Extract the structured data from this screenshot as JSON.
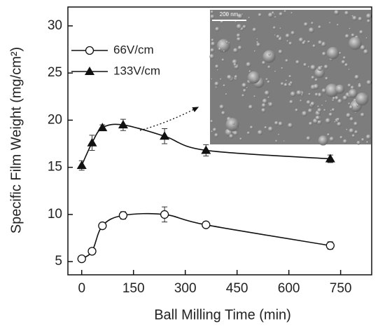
{
  "chart_data": {
    "type": "scatter",
    "xlabel": "Ball Milling Time (min)",
    "ylabel": "Specific Film Weight (mg/cm²)",
    "x": [
      0,
      30,
      60,
      120,
      240,
      360,
      720
    ],
    "series": [
      {
        "name": "66V/cm",
        "marker": "circle",
        "color": "#111111",
        "values": [
          5.3,
          6.1,
          8.8,
          9.9,
          10.0,
          8.9,
          6.7
        ],
        "errors": [
          0.2,
          0.3,
          0.2,
          0.4,
          0.8,
          0.3,
          0.4
        ]
      },
      {
        "name": "133V/cm",
        "marker": "triangle",
        "color": "#111111",
        "values": [
          15.2,
          17.6,
          19.2,
          19.5,
          18.3,
          16.8,
          15.9
        ],
        "errors": [
          0.5,
          0.8,
          0.3,
          0.6,
          0.8,
          0.6,
          0.4
        ]
      }
    ],
    "xlim": [
      -40,
      840
    ],
    "ylim": [
      3.6,
      32
    ],
    "xticks": [
      0,
      150,
      300,
      450,
      600,
      750
    ],
    "yticks": [
      5,
      10,
      15,
      20,
      25,
      30
    ],
    "legend": "upper left",
    "inset": {
      "scale_label": "200 nm"
    }
  }
}
